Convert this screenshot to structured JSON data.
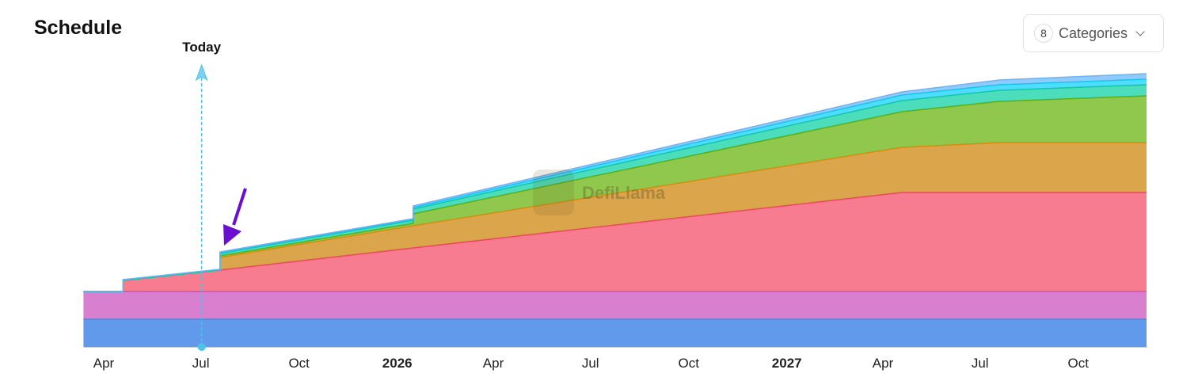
{
  "header": {
    "title": "Schedule"
  },
  "categories_button": {
    "count": "8",
    "label": "Categories"
  },
  "watermark": "DefiLlama",
  "chart_data": {
    "type": "area",
    "stacked": true,
    "title": "",
    "xlabel": "",
    "ylabel": "",
    "y_axis_shown": false,
    "grid": false,
    "x_ticks": [
      {
        "date": "2025-04-01",
        "label": "Apr",
        "bold": false
      },
      {
        "date": "2025-07-01",
        "label": "Jul",
        "bold": false
      },
      {
        "date": "2025-10-01",
        "label": "Oct",
        "bold": false
      },
      {
        "date": "2026-01-01",
        "label": "2026",
        "bold": true
      },
      {
        "date": "2026-04-01",
        "label": "Apr",
        "bold": false
      },
      {
        "date": "2026-07-01",
        "label": "Jul",
        "bold": false
      },
      {
        "date": "2026-10-01",
        "label": "Oct",
        "bold": false
      },
      {
        "date": "2027-01-01",
        "label": "2027",
        "bold": true
      },
      {
        "date": "2027-04-01",
        "label": "Apr",
        "bold": false
      },
      {
        "date": "2027-07-01",
        "label": "Jul",
        "bold": false
      },
      {
        "date": "2027-10-01",
        "label": "Oct",
        "bold": false
      }
    ],
    "x": [
      "2025-03-13",
      "2025-04-19",
      "2025-04-19",
      "2025-07-19",
      "2025-07-19",
      "2026-01-16",
      "2026-01-16",
      "2027-04-19",
      "2027-07-19",
      "2027-12-04"
    ],
    "series": [
      {
        "color": "#6199eb",
        "line": "#4f86d8",
        "values": [
          35,
          35,
          35,
          35,
          35,
          35,
          35,
          35,
          35,
          35
        ]
      },
      {
        "color": "#d97fcf",
        "line": "#c050b8",
        "values": [
          35,
          35,
          35,
          35,
          35,
          35,
          35,
          35,
          35,
          35
        ]
      },
      {
        "color": "#f77c90",
        "line": "#ef4565",
        "values": [
          0,
          0,
          14,
          27,
          27,
          55,
          55,
          125,
          125,
          125
        ]
      },
      {
        "color": "#dba54b",
        "line": "#d98a10",
        "values": [
          0,
          0,
          0,
          0,
          16,
          28,
          28,
          57,
          63,
          63
        ]
      },
      {
        "color": "#8fc84c",
        "line": "#5fae10",
        "values": [
          0,
          0,
          0,
          0,
          2,
          3,
          15,
          45,
          52,
          59
        ]
      },
      {
        "color": "#4cddbd",
        "line": "#14c79e",
        "values": [
          0,
          0,
          0,
          0,
          3,
          4,
          6,
          14,
          14,
          14
        ]
      },
      {
        "color": "#4edcff",
        "line": "#10c8f0",
        "values": [
          0,
          0,
          1,
          1,
          1,
          1,
          2,
          7,
          7,
          7
        ]
      },
      {
        "color": "#90caff",
        "line": "#6ab4f8",
        "values": [
          0,
          0,
          0,
          0,
          1,
          1,
          2,
          4,
          6,
          7
        ]
      }
    ],
    "annotations": [
      {
        "type": "today-marker",
        "label": "Today",
        "date": "2025-07-01",
        "color": "#4cc3ea"
      },
      {
        "type": "pointer-arrow",
        "date": "2025-07-24",
        "color": "#6a0fcf"
      }
    ]
  }
}
